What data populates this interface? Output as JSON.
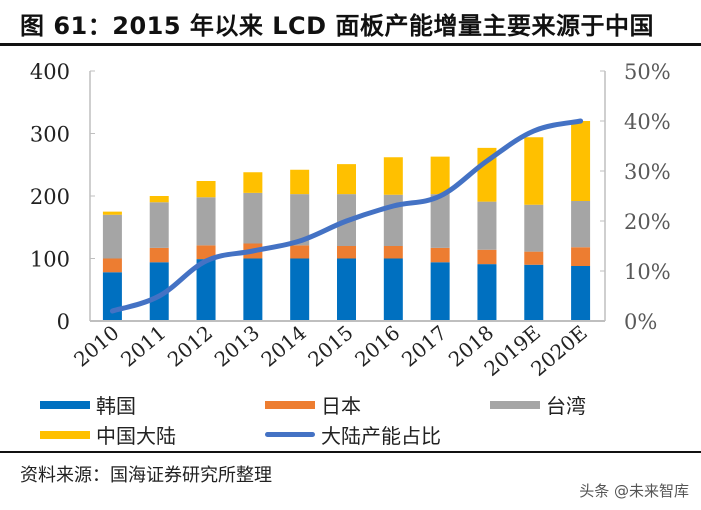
{
  "header": {
    "title": "图 61：2015 年以来 LCD 面板产能增量主要来源于中国"
  },
  "footer": {
    "source": "资料来源：国海证券研究所整理",
    "watermark": "头条 @未来智库"
  },
  "colors": {
    "korea": "#0070C0",
    "japan": "#ED7D31",
    "taiwan": "#A5A5A5",
    "mainland": "#FFC000",
    "share_line": "#4472C4",
    "axis": "#BFBFBF",
    "tick_text_left": "#222222",
    "tick_text_right": "#595959"
  },
  "chart_data": {
    "type": "bar",
    "stacked": true,
    "title": "2015 年以来 LCD 面板产能增量主要来源于中国",
    "categories": [
      "2010",
      "2011",
      "2012",
      "2013",
      "2014",
      "2015",
      "2016",
      "2017",
      "2018",
      "2019E",
      "2020E"
    ],
    "series": [
      {
        "name": "韩国",
        "key": "korea",
        "axis": "left",
        "type": "bar",
        "values": [
          78,
          94,
          99,
          100,
          100,
          100,
          100,
          94,
          91,
          90,
          88
        ]
      },
      {
        "name": "日本",
        "key": "japan",
        "axis": "left",
        "type": "bar",
        "values": [
          22,
          23,
          22,
          24,
          21,
          20,
          20,
          23,
          23,
          21,
          30
        ]
      },
      {
        "name": "台湾",
        "key": "taiwan",
        "axis": "left",
        "type": "bar",
        "values": [
          70,
          73,
          77,
          81,
          82,
          83,
          82,
          86,
          77,
          75,
          74
        ]
      },
      {
        "name": "中国大陆",
        "key": "mainland",
        "axis": "left",
        "type": "bar",
        "values": [
          5,
          10,
          26,
          33,
          39,
          48,
          60,
          60,
          86,
          108,
          128
        ]
      },
      {
        "name": "大陆产能占比",
        "key": "share_line",
        "axis": "right",
        "type": "line",
        "unit": "%",
        "values": [
          2,
          5,
          12,
          14,
          16,
          20,
          23,
          25,
          32,
          38,
          40
        ]
      }
    ],
    "left_axis": {
      "ylim": [
        0,
        400
      ],
      "ticks": [
        "0",
        "100",
        "200",
        "300",
        "400"
      ]
    },
    "right_axis": {
      "ylim": [
        0,
        50
      ],
      "ticks": [
        "0%",
        "10%",
        "20%",
        "30%",
        "40%",
        "50%"
      ]
    },
    "xlabel": "",
    "ylabel": "",
    "grid": false,
    "legend_position": "bottom",
    "x_tick_rotation": "diagonal"
  },
  "legend": [
    {
      "label": "韩国",
      "key": "korea",
      "shape": "bar"
    },
    {
      "label": "日本",
      "key": "japan",
      "shape": "bar"
    },
    {
      "label": "台湾",
      "key": "taiwan",
      "shape": "bar"
    },
    {
      "label": "中国大陆",
      "key": "mainland",
      "shape": "bar"
    },
    {
      "label": "大陆产能占比",
      "key": "share_line",
      "shape": "line"
    }
  ]
}
